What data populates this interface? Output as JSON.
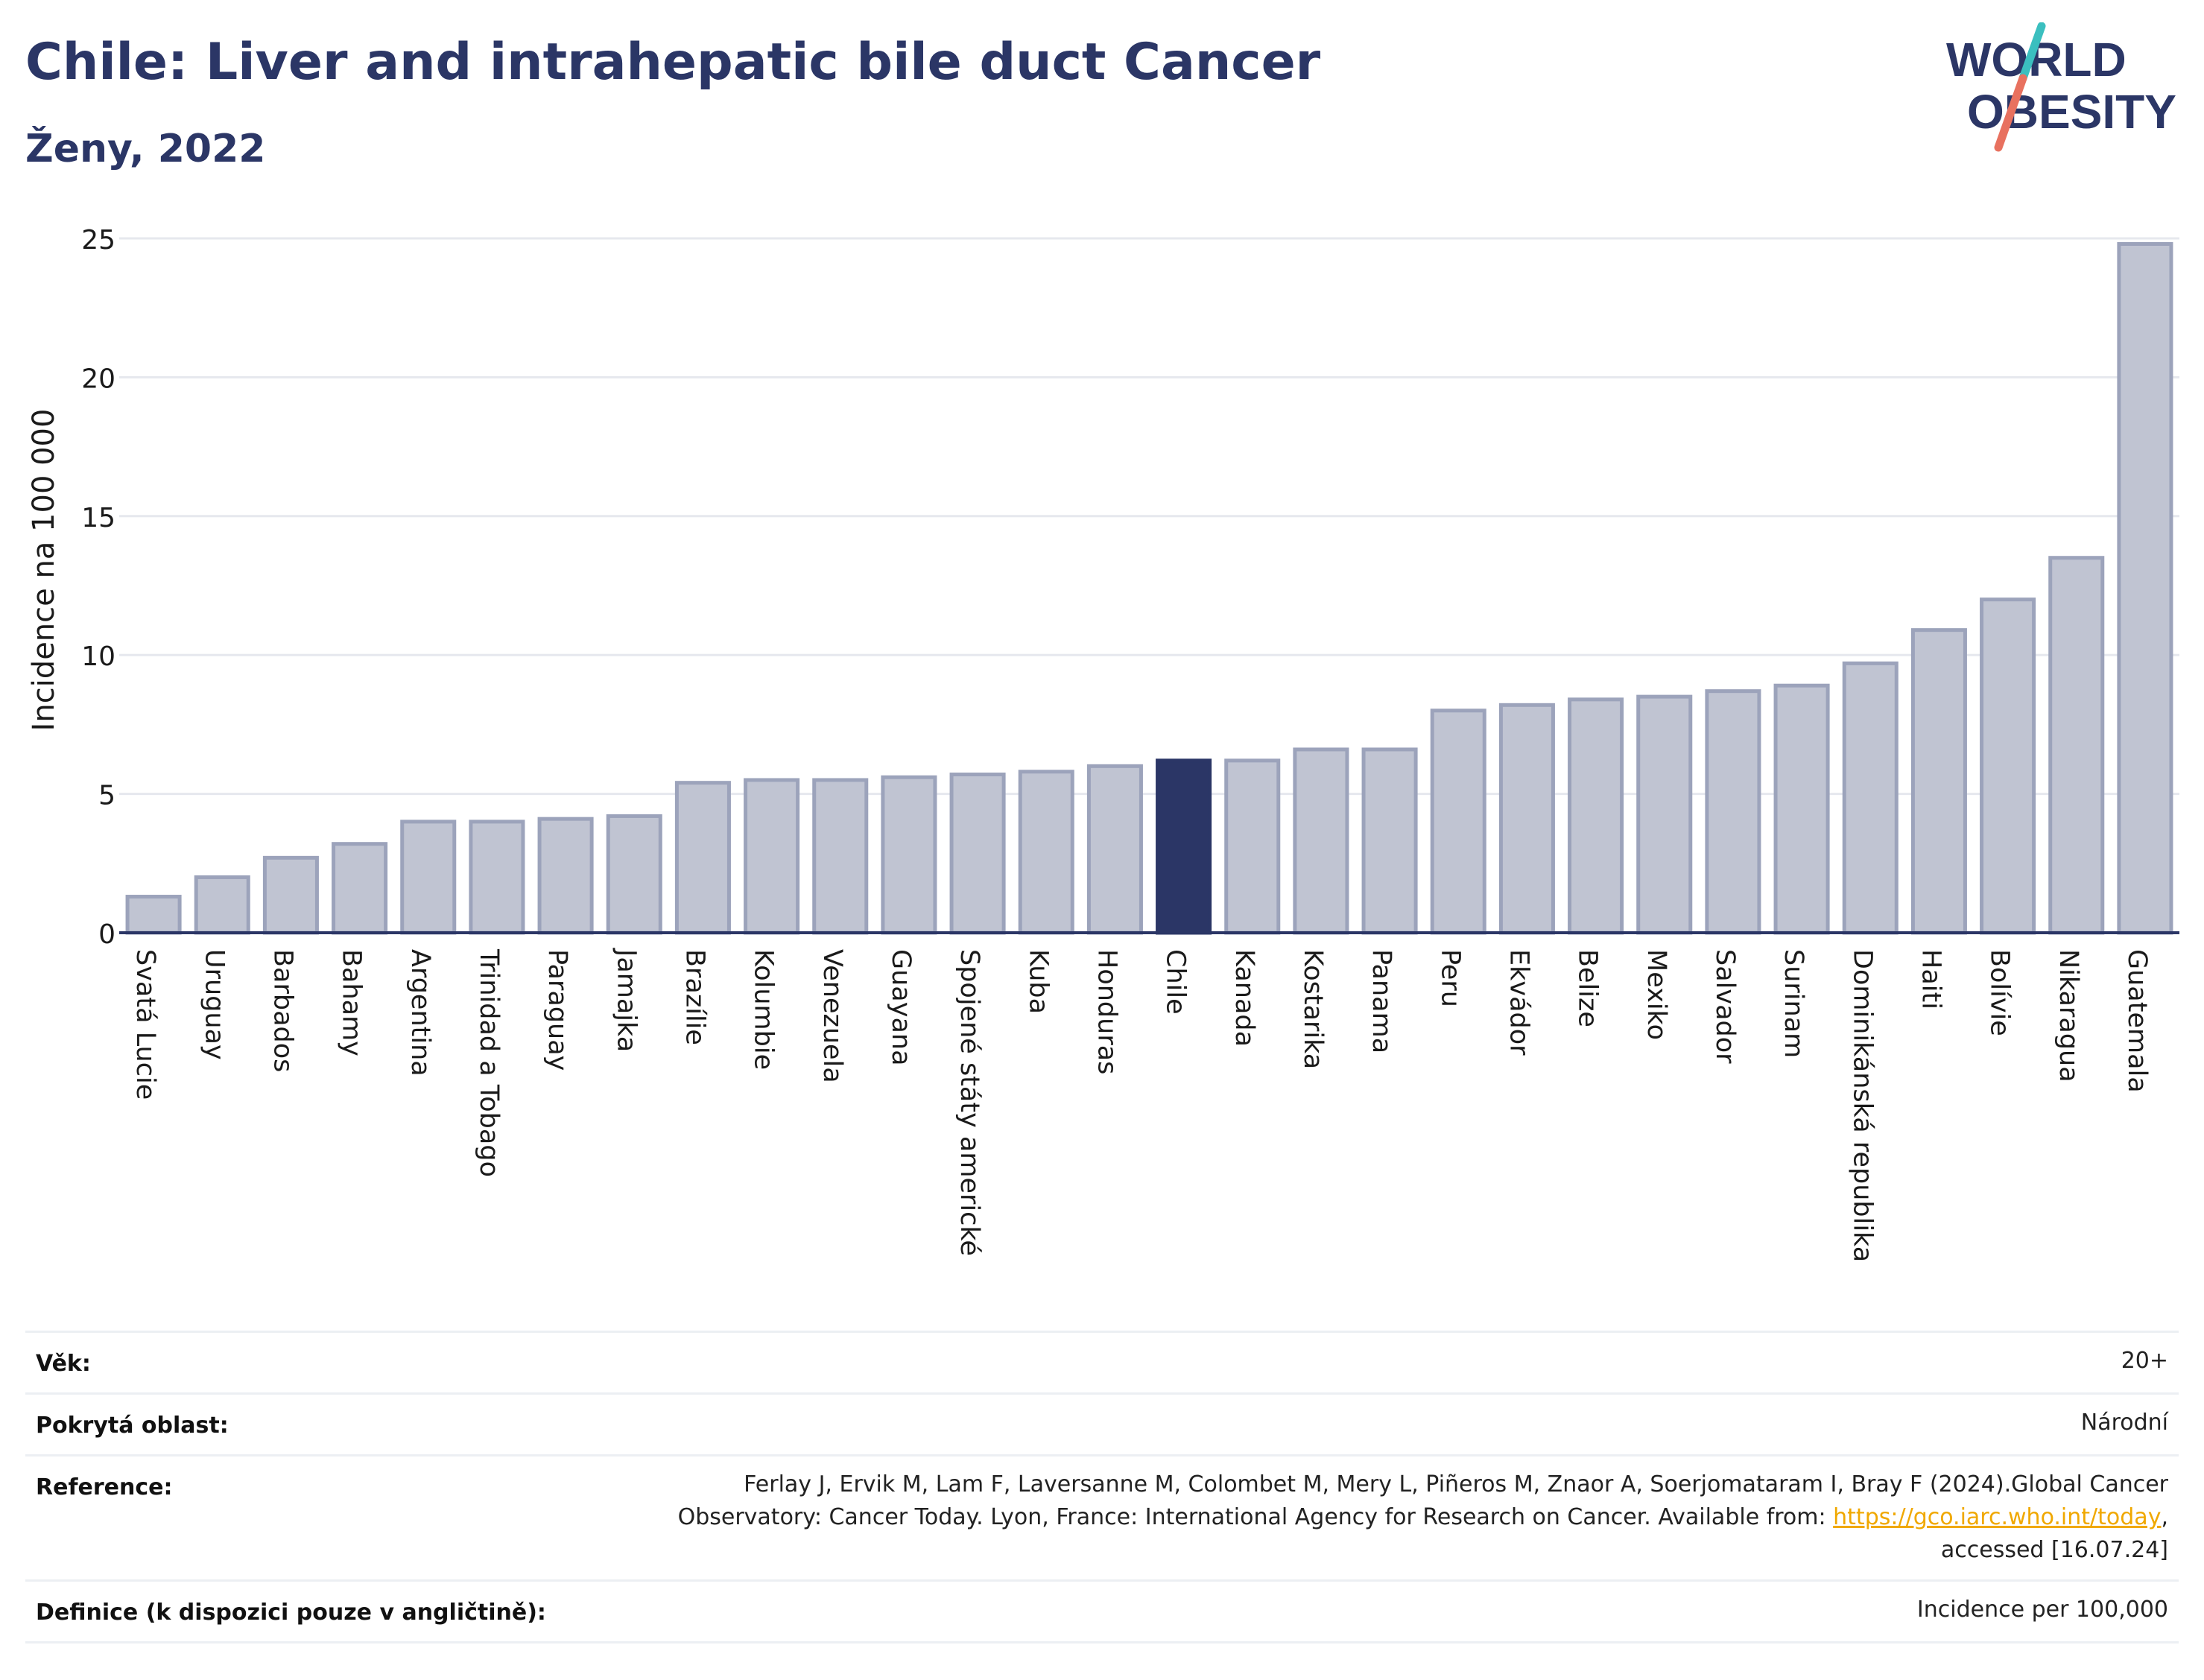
{
  "header": {
    "title": "Chile: Liver and intrahepatic bile duct Cancer",
    "subtitle": "Ženy, 2022"
  },
  "logo": {
    "line1": "WORLD",
    "line2": "OBESITY",
    "colors": {
      "text": "#2b3666",
      "slash_top": "#3bbfbf",
      "slash_bottom": "#e8715f"
    }
  },
  "colors": {
    "bar_fill": "#c0c4d2",
    "bar_stroke": "#9ca3bb",
    "highlight_fill": "#2b3666",
    "axis": "#2b3666",
    "grid": "#e6e8ee"
  },
  "chart_data": {
    "type": "bar",
    "ylabel": "Incidence na 100 000",
    "ylim": [
      0,
      25
    ],
    "yticks": [
      0,
      5,
      10,
      15,
      20,
      25
    ],
    "grid": true,
    "highlight": "Chile",
    "categories": [
      "Svatá Lucie",
      "Uruguay",
      "Barbados",
      "Bahamy",
      "Argentina",
      "Trinidad a Tobago",
      "Paraguay",
      "Jamajka",
      "Brazílie",
      "Kolumbie",
      "Venezuela",
      "Guayana",
      "Spojené státy americké",
      "Kuba",
      "Honduras",
      "Chile",
      "Kanada",
      "Kostarika",
      "Panama",
      "Peru",
      "Ekvádor",
      "Belize",
      "Mexiko",
      "Salvador",
      "Surinam",
      "Dominikánská republika",
      "Haiti",
      "Bolívie",
      "Nikaragua",
      "Guatemala"
    ],
    "values": [
      1.3,
      2.0,
      2.7,
      3.2,
      4.0,
      4.0,
      4.1,
      4.2,
      5.4,
      5.5,
      5.5,
      5.6,
      5.7,
      5.8,
      6.0,
      6.2,
      6.2,
      6.6,
      6.6,
      8.0,
      8.2,
      8.4,
      8.5,
      8.7,
      8.9,
      9.7,
      10.9,
      12.0,
      13.5,
      24.8
    ]
  },
  "meta": {
    "rows": [
      {
        "label": "Věk:",
        "value": "20+"
      },
      {
        "label": "Pokrytá oblast:",
        "value": "Národní"
      },
      {
        "label": "Reference:",
        "value_line1": "Ferlay J, Ervik M, Lam F, Laversanne M, Colombet M, Mery L, Piñeros M, Znaor A, Soerjomataram I, Bray F (2024).Global Cancer",
        "value_line2_pre": "Observatory: Cancer Today. Lyon, France: International Agency for Research on Cancer. Available from: ",
        "value_link": "https://gco.iarc.who.int/today",
        "value_line2_post": ",",
        "value_line3": "accessed [16.07.24]"
      },
      {
        "label": "Definice (k dispozici pouze v angličtině):",
        "value": "Incidence per 100,000"
      }
    ]
  }
}
